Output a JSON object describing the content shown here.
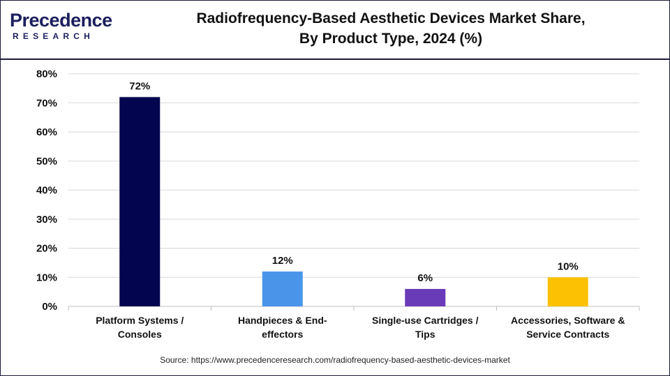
{
  "logo": {
    "main_prefix": "P",
    "main_rest": "recedence",
    "sub": "RESEARCH"
  },
  "title_line1": "Radiofrequency-Based Aesthetic Devices Market Share,",
  "title_line2": "By Product Type, 2024 (%)",
  "source": "Source: https://www.precedenceresearch.com/radiofrequency-based-aesthetic-devices-market",
  "chart_data": {
    "type": "bar",
    "title": "Radiofrequency-Based Aesthetic Devices Market Share, By Product Type, 2024 (%)",
    "categories": [
      [
        "Platform Systems /",
        "Consoles"
      ],
      [
        "Handpieces & End-",
        "effectors"
      ],
      [
        "Single-use Cartridges /",
        "Tips"
      ],
      [
        "Accessories, Software &",
        "Service Contracts"
      ]
    ],
    "values": [
      72,
      12,
      6,
      10
    ],
    "data_labels": [
      "72%",
      "12%",
      "6%",
      "10%"
    ],
    "colors": [
      "#03064f",
      "#4a95ea",
      "#6a3bb8",
      "#fbc102"
    ],
    "ylim": [
      0,
      80
    ],
    "yticks": [
      0,
      10,
      20,
      30,
      40,
      50,
      60,
      70,
      80
    ],
    "ytick_labels": [
      "0%",
      "10%",
      "20%",
      "30%",
      "40%",
      "50%",
      "60%",
      "70%",
      "80%"
    ],
    "grid": true,
    "xlabel": "",
    "ylabel": ""
  }
}
